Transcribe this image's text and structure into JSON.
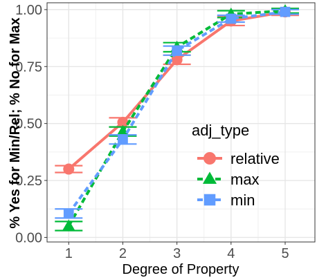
{
  "chart_data": {
    "type": "line",
    "xlabel": "Degree of Property",
    "ylabel": "% Yes for Min/Rel; % No for Max",
    "x": [
      1,
      2,
      3,
      4,
      5
    ],
    "x_ticks": [
      "1",
      "2",
      "3",
      "4",
      "5"
    ],
    "y_ticks": [
      "0.00",
      "0.25",
      "0.50",
      "0.75",
      "1.00"
    ],
    "xlim": [
      0.6,
      5.55
    ],
    "ylim": [
      -0.02,
      1.03
    ],
    "grid": true,
    "legend": {
      "title": "adj_type",
      "position": "center-right"
    },
    "series": [
      {
        "name": "relative",
        "color": "#F8766D",
        "line": "solid",
        "marker": "circle",
        "values": [
          0.3,
          0.505,
          0.78,
          0.95,
          0.99
        ],
        "errors": [
          0.015,
          0.02,
          0.02,
          0.02,
          0.015
        ]
      },
      {
        "name": "max",
        "color": "#00BA38",
        "line": "dashed",
        "marker": "triangle",
        "values": [
          0.05,
          0.465,
          0.835,
          0.98,
          0.995
        ],
        "errors": [
          0.02,
          0.02,
          0.02,
          0.015,
          0.01
        ]
      },
      {
        "name": "min",
        "color": "#619CFF",
        "line": "dashed",
        "marker": "square",
        "values": [
          0.105,
          0.43,
          0.82,
          0.96,
          0.99
        ],
        "errors": [
          0.02,
          0.02,
          0.02,
          0.015,
          0.01
        ]
      }
    ]
  }
}
